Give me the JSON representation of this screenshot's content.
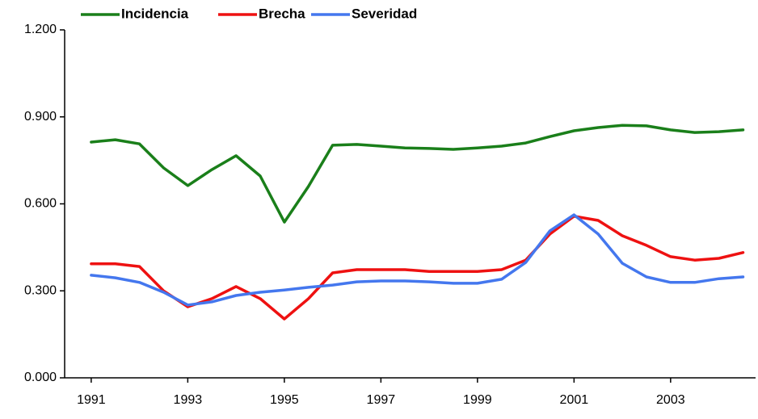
{
  "chart_data": {
    "type": "line",
    "x": [
      1991,
      1991.5,
      1992,
      1992.5,
      1993,
      1993.5,
      1994,
      1994.5,
      1995,
      1995.5,
      1996,
      1996.5,
      1997,
      1997.5,
      1998,
      1998.5,
      1999,
      1999.5,
      2000,
      2000.5,
      2001,
      2001.5,
      2002,
      2002.5,
      2003,
      2003.5,
      2004,
      2004.5
    ],
    "series": [
      {
        "name": "Incidencia",
        "color": "#1a7f1a",
        "values": [
          0.813,
          0.821,
          0.807,
          0.724,
          0.663,
          0.718,
          0.766,
          0.696,
          0.537,
          0.66,
          0.802,
          0.805,
          0.799,
          0.793,
          0.791,
          0.788,
          0.793,
          0.799,
          0.81,
          0.832,
          0.852,
          0.863,
          0.871,
          0.869,
          0.855,
          0.846,
          0.849,
          0.855
        ]
      },
      {
        "name": "Brecha",
        "color": "#ee1111",
        "values": [
          0.393,
          0.393,
          0.384,
          0.3,
          0.245,
          0.273,
          0.315,
          0.273,
          0.203,
          0.273,
          0.362,
          0.373,
          0.373,
          0.373,
          0.367,
          0.367,
          0.367,
          0.373,
          0.406,
          0.496,
          0.557,
          0.543,
          0.49,
          0.457,
          0.418,
          0.406,
          0.412,
          0.432
        ]
      },
      {
        "name": "Severidad",
        "color": "#4477ee",
        "values": [
          0.354,
          0.345,
          0.329,
          0.295,
          0.251,
          0.262,
          0.284,
          0.295,
          0.303,
          0.312,
          0.32,
          0.331,
          0.334,
          0.334,
          0.331,
          0.326,
          0.326,
          0.34,
          0.398,
          0.507,
          0.562,
          0.496,
          0.395,
          0.348,
          0.329,
          0.329,
          0.342,
          0.348
        ]
      }
    ],
    "xlim": [
      1990.45,
      2004.76
    ],
    "xticks": [
      1991,
      1993,
      1995,
      1997,
      1999,
      2001,
      2003
    ],
    "ylim": [
      0,
      1.2
    ],
    "yticks": [
      {
        "value": 0,
        "label": "0.000"
      },
      {
        "value": 0.3,
        "label": "0.300"
      },
      {
        "value": 0.6,
        "label": "0.600"
      },
      {
        "value": 0.9,
        "label": "0.900"
      },
      {
        "value": 1.2,
        "label": "1.200"
      }
    ],
    "legend": "top"
  }
}
